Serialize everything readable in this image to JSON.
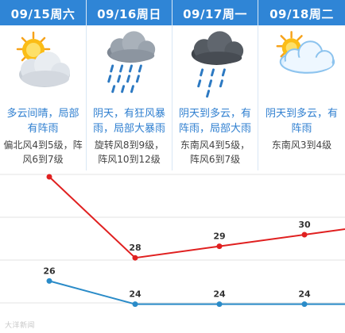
{
  "days": [
    {
      "date": "09/15周六",
      "icon": "partly-cloudy-sun-icon",
      "desc": "多云间晴，局部有阵雨",
      "wind": "偏北风4到5级，阵风6到7级"
    },
    {
      "date": "09/16周日",
      "icon": "heavy-rain-cloud-icon",
      "desc": "阴天，有狂风暴雨，局部大暴雨",
      "wind": "旋转风8到9级，阵风10到12级"
    },
    {
      "date": "09/17周一",
      "icon": "dark-rain-cloud-icon",
      "desc": "阴天到多云，有阵雨，局部大雨",
      "wind": "东南风4到5级，阵风6到7级"
    },
    {
      "date": "09/18周二",
      "icon": "sun-behind-cloud-icon",
      "desc": "阴天到多云，有阵雨",
      "wind": "东南风3到4级"
    }
  ],
  "chart_data": {
    "type": "line",
    "categories": [
      "09/15周六",
      "09/16周日",
      "09/17周一",
      "09/18周二"
    ],
    "series": [
      {
        "values": [
          35,
          28,
          29,
          30
        ],
        "color": "#e02020"
      },
      {
        "values": [
          26,
          24,
          24,
          24
        ],
        "color": "#2a8bc8"
      }
    ],
    "ylim": [
      20,
      40
    ],
    "grid": true
  },
  "watermark": "大洋新闻"
}
